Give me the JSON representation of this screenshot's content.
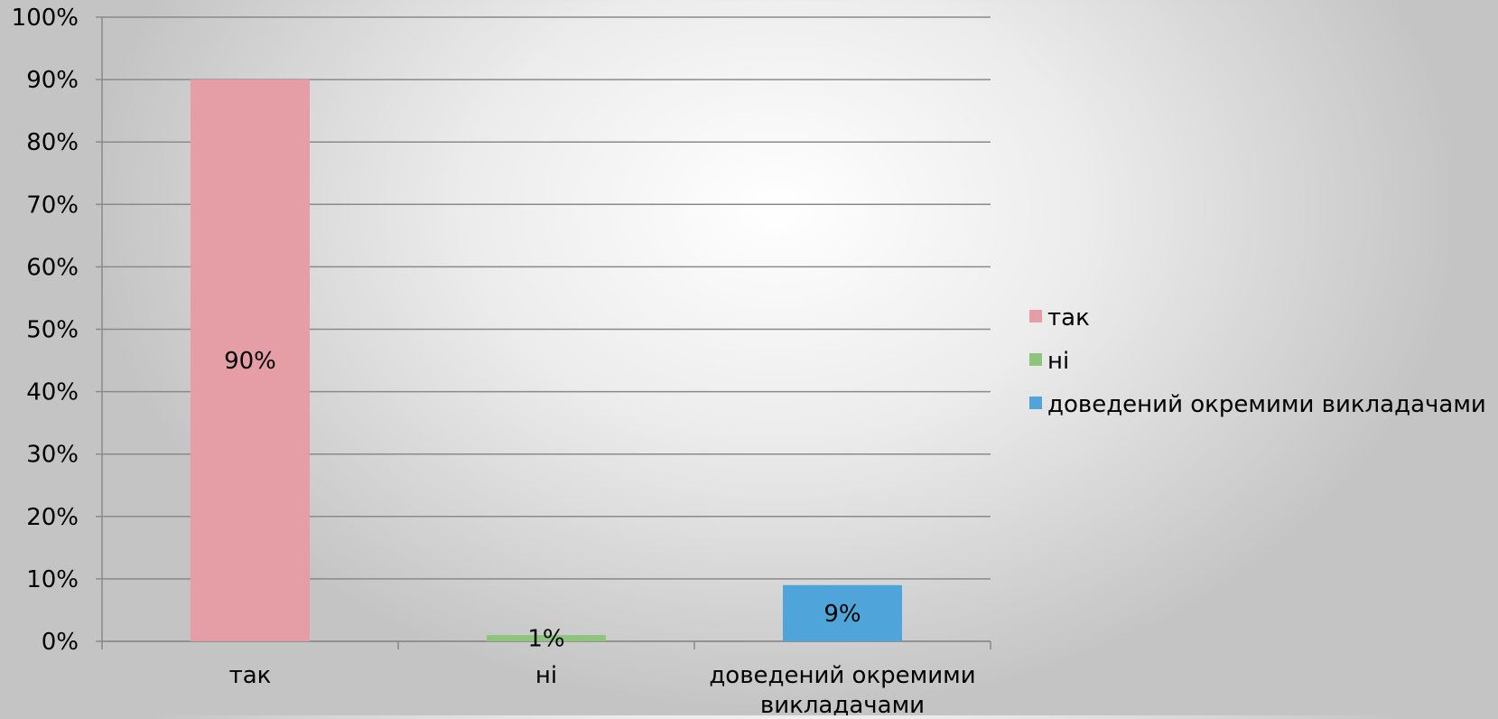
{
  "chart_data": {
    "type": "bar",
    "categories": [
      "так",
      "ні",
      "доведений окремими викладачами"
    ],
    "category_label_lines": [
      [
        "так"
      ],
      [
        "ні"
      ],
      [
        "доведений окремими",
        "викладачами"
      ]
    ],
    "values": [
      90,
      1,
      9
    ],
    "data_labels": [
      "90%",
      "1%",
      "9%"
    ],
    "colors": [
      "#e69ea6",
      "#8ec47c",
      "#4fa5d9"
    ],
    "legend": [
      "так",
      "ні",
      "доведений окремими викладачами"
    ],
    "legend_position": "right",
    "ylim": [
      0,
      100
    ],
    "yticks": [
      "0%",
      "10%",
      "20%",
      "30%",
      "40%",
      "50%",
      "60%",
      "70%",
      "80%",
      "90%",
      "100%"
    ],
    "grid": true,
    "title": "",
    "xlabel": "",
    "ylabel": ""
  }
}
